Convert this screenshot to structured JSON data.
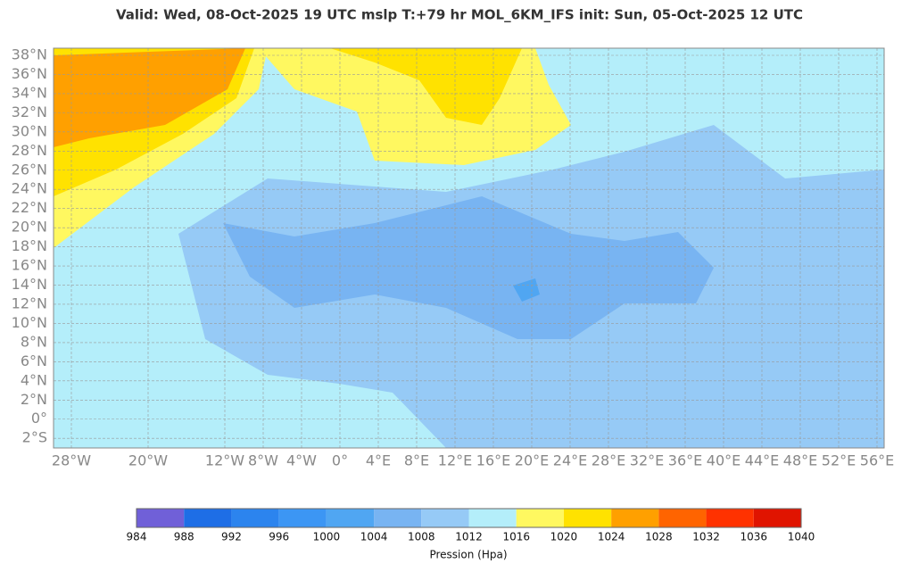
{
  "header": {
    "title": "Valid: Wed, 08-Oct-2025   19 UTC   mslp   T:+79 hr   MOL_6KM_IFS      init: Sun, 05-Oct-2025   12 UTC"
  },
  "map": {
    "lat_labels": [
      {
        "value": 38,
        "label": "38°N"
      },
      {
        "value": 36,
        "label": "36°N"
      },
      {
        "value": 34,
        "label": "34°N"
      },
      {
        "value": 32,
        "label": "32°N"
      },
      {
        "value": 30,
        "label": "30°N"
      },
      {
        "value": 28,
        "label": "28°N"
      },
      {
        "value": 26,
        "label": "26°N"
      },
      {
        "value": 24,
        "label": "24°N"
      },
      {
        "value": 22,
        "label": "22°N"
      },
      {
        "value": 20,
        "label": "20°N"
      },
      {
        "value": 18,
        "label": "18°N"
      },
      {
        "value": 16,
        "label": "16°N"
      },
      {
        "value": 14,
        "label": "14°N"
      },
      {
        "value": 12,
        "label": "12°N"
      },
      {
        "value": 10,
        "label": "10°N"
      },
      {
        "value": 8,
        "label": "8°N"
      },
      {
        "value": 6,
        "label": "6°N"
      },
      {
        "value": 4,
        "label": "4°N"
      },
      {
        "value": 2,
        "label": "2°N"
      },
      {
        "value": 0,
        "label": "0°"
      },
      {
        "value": -2,
        "label": "2°S"
      }
    ],
    "lon_labels": [
      {
        "value": -28,
        "label": "28°W"
      },
      {
        "value": -20,
        "label": "20°W"
      },
      {
        "value": -12,
        "label": "12°W"
      },
      {
        "value": -8,
        "label": "8°W"
      },
      {
        "value": -4,
        "label": "4°W"
      },
      {
        "value": 0,
        "label": "0°"
      },
      {
        "value": 4,
        "label": "4°E"
      },
      {
        "value": 8,
        "label": "8°E"
      },
      {
        "value": 12,
        "label": "12°E"
      },
      {
        "value": 16,
        "label": "16°E"
      },
      {
        "value": 20,
        "label": "20°E"
      },
      {
        "value": 24,
        "label": "24°E"
      },
      {
        "value": 28,
        "label": "28°E"
      },
      {
        "value": 32,
        "label": "32°E"
      },
      {
        "value": 36,
        "label": "36°E"
      },
      {
        "value": 40,
        "label": "40°E"
      },
      {
        "value": 44,
        "label": "44°E"
      },
      {
        "value": 48,
        "label": "48°E"
      },
      {
        "value": 52,
        "label": "52°E"
      },
      {
        "value": 56,
        "label": "56°E"
      }
    ]
  },
  "colorbar": {
    "ticks": [
      984,
      988,
      992,
      996,
      1000,
      1004,
      1008,
      1012,
      1016,
      1020,
      1024,
      1028,
      1032,
      1036,
      1040
    ],
    "colors": [
      "#7060d8",
      "#1e6ee6",
      "#2c84ee",
      "#3c96f4",
      "#50a6f2",
      "#78b4f2",
      "#96caf6",
      "#b4eefa",
      "#fff860",
      "#ffe200",
      "#ffa000",
      "#ff6400",
      "#ff3200",
      "#e01400"
    ],
    "label": "Pression (Hpa)"
  }
}
